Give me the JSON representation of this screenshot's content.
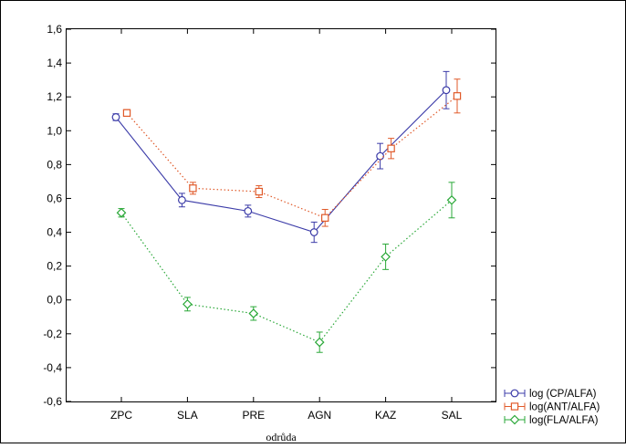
{
  "chart_data": {
    "type": "line",
    "title": "",
    "xlabel": "odrůda",
    "ylabel": "",
    "categories": [
      "ZPC",
      "SLA",
      "PRE",
      "AGN",
      "KAZ",
      "SAL"
    ],
    "ylim": [
      -0.6,
      1.6
    ],
    "yticks": [
      "-0,6",
      "-0,4",
      "-0,2",
      "0,0",
      "0,2",
      "0,4",
      "0,6",
      "0,8",
      "1,0",
      "1,2",
      "1,4",
      "1,6"
    ],
    "grid": false,
    "legend_position": "bottom-right",
    "series": [
      {
        "name": "log (CP/ALFA)",
        "color": "#3b3ba8",
        "marker": "circle",
        "line_style": "solid",
        "values": [
          1.08,
          0.59,
          0.525,
          0.4,
          0.85,
          1.24
        ],
        "err_low": [
          0.02,
          0.04,
          0.035,
          0.06,
          0.075,
          0.11
        ],
        "err_high": [
          0.02,
          0.04,
          0.035,
          0.06,
          0.075,
          0.11
        ]
      },
      {
        "name": "log(ANT/ALFA)",
        "color": "#e05a2a",
        "marker": "square",
        "line_style": "dotted",
        "values": [
          1.105,
          0.66,
          0.64,
          0.485,
          0.895,
          1.205
        ],
        "err_low": [
          0.02,
          0.035,
          0.035,
          0.05,
          0.06,
          0.1
        ],
        "err_high": [
          0.02,
          0.035,
          0.035,
          0.05,
          0.06,
          0.1
        ]
      },
      {
        "name": "log(FLA/ALFA)",
        "color": "#2aa838",
        "marker": "diamond",
        "line_style": "dotted",
        "values": [
          0.515,
          -0.025,
          -0.08,
          -0.25,
          0.255,
          0.59
        ],
        "err_low": [
          0.025,
          0.04,
          0.04,
          0.06,
          0.075,
          0.105
        ],
        "err_high": [
          0.025,
          0.04,
          0.04,
          0.06,
          0.075,
          0.105
        ]
      }
    ]
  }
}
